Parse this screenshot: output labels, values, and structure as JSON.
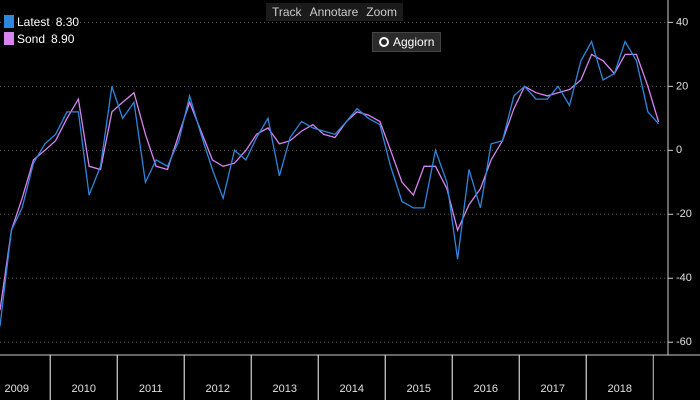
{
  "toolbar": {
    "items": [
      "Track",
      "Annotare",
      "Zoom"
    ],
    "refresh": "Aggiorn"
  },
  "chart_data": {
    "type": "line",
    "x": [
      2009.25,
      2009.42,
      2009.58,
      2009.75,
      2009.92,
      2010.08,
      2010.25,
      2010.42,
      2010.58,
      2010.75,
      2010.92,
      2011.08,
      2011.25,
      2011.42,
      2011.58,
      2011.75,
      2011.92,
      2012.08,
      2012.25,
      2012.42,
      2012.58,
      2012.75,
      2012.92,
      2013.08,
      2013.25,
      2013.42,
      2013.58,
      2013.75,
      2013.92,
      2014.08,
      2014.25,
      2014.42,
      2014.58,
      2014.75,
      2014.92,
      2015.08,
      2015.25,
      2015.42,
      2015.58,
      2015.75,
      2015.92,
      2016.08,
      2016.25,
      2016.42,
      2016.58,
      2016.75,
      2016.92,
      2017.08,
      2017.25,
      2017.42,
      2017.58,
      2017.75,
      2017.92,
      2018.08,
      2018.25,
      2018.42,
      2018.58,
      2018.75,
      2018.92,
      2019.08
    ],
    "series": [
      {
        "name": "Latest",
        "legend_value": "8.30",
        "color": "#2f86dd",
        "values": [
          -55,
          -25,
          -18,
          -4,
          2,
          5,
          12,
          12,
          -14,
          -5,
          20,
          10,
          15,
          -10,
          -3,
          -5,
          3,
          17,
          5,
          -6,
          -15,
          0,
          -3,
          4,
          10,
          -8,
          4,
          9,
          7,
          6,
          5,
          9,
          13,
          10,
          8,
          -5,
          -16,
          -18,
          -18,
          0,
          -10,
          -34,
          -6,
          -18,
          2,
          3,
          17,
          20,
          16,
          16,
          20,
          14,
          28,
          34,
          22,
          24,
          34,
          28,
          12,
          8.3
        ]
      },
      {
        "name": "Sond",
        "legend_value": "8.90",
        "color": "#d685ee",
        "values": [
          -50,
          -25,
          -15,
          -3,
          0,
          3,
          10,
          16,
          -5,
          -6,
          12,
          15,
          18,
          5,
          -5,
          -6,
          5,
          15,
          6,
          -3,
          -5,
          -4,
          0,
          5,
          7,
          2,
          3,
          6,
          8,
          5,
          4,
          9,
          12,
          11,
          9,
          0,
          -10,
          -14,
          -5,
          -5,
          -12,
          -25,
          -17,
          -12,
          -3,
          3,
          13,
          20,
          18,
          17,
          18,
          19,
          22,
          30,
          28,
          24,
          30,
          30,
          20,
          8.9
        ]
      }
    ],
    "xlim": [
      2009.25,
      2019.22
    ],
    "xticks": [
      {
        "value": 2009.5,
        "label": "2009"
      },
      {
        "value": 2010.5,
        "label": "2010"
      },
      {
        "value": 2011.5,
        "label": "2011"
      },
      {
        "value": 2012.5,
        "label": "2012"
      },
      {
        "value": 2013.5,
        "label": "2013"
      },
      {
        "value": 2014.5,
        "label": "2014"
      },
      {
        "value": 2015.5,
        "label": "2015"
      },
      {
        "value": 2016.5,
        "label": "2016"
      },
      {
        "value": 2017.5,
        "label": "2017"
      },
      {
        "value": 2018.5,
        "label": "2018"
      }
    ],
    "ylim": [
      -64,
      47
    ],
    "yticks": [
      -60,
      -40,
      -20,
      0,
      20,
      40
    ],
    "grid": true
  }
}
